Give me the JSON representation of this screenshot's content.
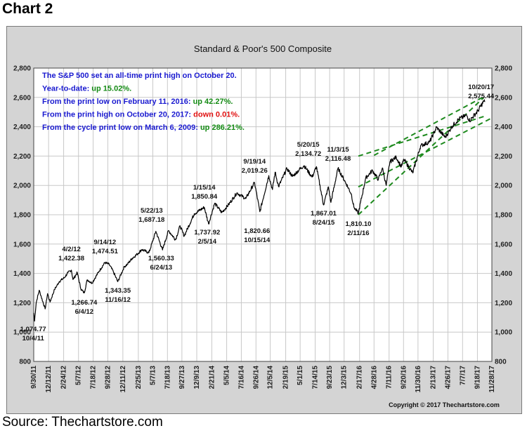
{
  "page": {
    "heading": "Chart 2",
    "source": "Source: Thechartstore.com"
  },
  "colors": {
    "blue": "#1a1ad0",
    "green": "#138a13",
    "red": "#e01010",
    "channel": "#1e8a1e",
    "price": "#000000"
  },
  "chart_data": {
    "type": "line",
    "title": "Standard & Poor's 500 Composite",
    "copyright": "Copyright © 2017 Thechartstore.com",
    "xlabel": "",
    "ylabel": "",
    "ylim": [
      800,
      2800
    ],
    "yticks": [
      800,
      1000,
      1200,
      1400,
      1600,
      1800,
      2000,
      2200,
      2400,
      2600,
      2800
    ],
    "ytick_labels": [
      "800",
      "1,000",
      "1,200",
      "1,400",
      "1,600",
      "1,800",
      "2,000",
      "2,200",
      "2,400",
      "2,600",
      "2,800"
    ],
    "xlim": [
      "2011-09-30",
      "2017-11-28"
    ],
    "xticks": [
      "2011-09-30",
      "2011-12-12",
      "2012-02-24",
      "2012-05-07",
      "2012-07-18",
      "2012-09-28",
      "2012-12-11",
      "2013-02-25",
      "2013-05-07",
      "2013-07-18",
      "2013-09-27",
      "2013-12-09",
      "2014-02-21",
      "2014-05-05",
      "2014-07-16",
      "2014-09-26",
      "2014-12-05",
      "2015-02-19",
      "2015-05-01",
      "2015-07-14",
      "2015-09-23",
      "2015-12-03",
      "2016-02-17",
      "2016-04-28",
      "2016-07-11",
      "2016-09-20",
      "2016-11-30",
      "2017-02-13",
      "2017-04-26",
      "2017-07-07",
      "2017-09-18",
      "2017-11-28"
    ],
    "xtick_labels": [
      "9/30/11",
      "12/12/11",
      "2/24/12",
      "5/7/12",
      "7/18/12",
      "9/28/12",
      "12/11/12",
      "2/25/13",
      "5/7/13",
      "7/18/13",
      "9/27/13",
      "12/9/13",
      "2/21/14",
      "5/5/14",
      "7/16/14",
      "9/26/14",
      "12/5/14",
      "2/19/15",
      "5/1/15",
      "7/14/15",
      "9/23/15",
      "12/3/15",
      "2/17/16",
      "4/28/16",
      "7/11/16",
      "9/20/16",
      "11/30/16",
      "2/13/17",
      "4/26/17",
      "7/7/17",
      "9/18/17",
      "11/28/17"
    ],
    "grid": true,
    "series": [
      {
        "points": [
          [
            "2011-09-30",
            1131
          ],
          [
            "2011-10-04",
            1074.77
          ],
          [
            "2011-10-12",
            1200
          ],
          [
            "2011-10-27",
            1285
          ],
          [
            "2011-11-04",
            1250
          ],
          [
            "2011-11-25",
            1158
          ],
          [
            "2011-12-07",
            1262
          ],
          [
            "2011-12-19",
            1205
          ],
          [
            "2012-01-10",
            1290
          ],
          [
            "2012-02-03",
            1345
          ],
          [
            "2012-02-28",
            1372
          ],
          [
            "2012-03-16",
            1405
          ],
          [
            "2012-04-02",
            1422.38
          ],
          [
            "2012-04-10",
            1358
          ],
          [
            "2012-05-01",
            1406
          ],
          [
            "2012-05-18",
            1296
          ],
          [
            "2012-06-04",
            1266.74
          ],
          [
            "2012-06-19",
            1357
          ],
          [
            "2012-07-12",
            1334
          ],
          [
            "2012-08-16",
            1415
          ],
          [
            "2012-09-14",
            1474.51
          ],
          [
            "2012-10-05",
            1461
          ],
          [
            "2012-10-25",
            1412
          ],
          [
            "2012-11-16",
            1343.35
          ],
          [
            "2012-12-18",
            1446
          ],
          [
            "2013-01-02",
            1462
          ],
          [
            "2013-01-25",
            1502
          ],
          [
            "2013-02-19",
            1531
          ],
          [
            "2013-03-14",
            1563
          ],
          [
            "2013-04-18",
            1541
          ],
          [
            "2013-05-22",
            1687.18
          ],
          [
            "2013-06-24",
            1560.33
          ],
          [
            "2013-07-23",
            1692
          ],
          [
            "2013-08-27",
            1630
          ],
          [
            "2013-09-18",
            1725
          ],
          [
            "2013-10-08",
            1655
          ],
          [
            "2013-11-27",
            1807
          ],
          [
            "2014-01-15",
            1850.84
          ],
          [
            "2014-02-05",
            1737.92
          ],
          [
            "2014-03-07",
            1878
          ],
          [
            "2014-04-11",
            1815
          ],
          [
            "2014-05-15",
            1870
          ],
          [
            "2014-06-24",
            1949
          ],
          [
            "2014-08-07",
            1910
          ],
          [
            "2014-09-19",
            2019.26
          ],
          [
            "2014-10-15",
            1820.66
          ],
          [
            "2014-11-28",
            2067
          ],
          [
            "2014-12-16",
            1972
          ],
          [
            "2014-12-29",
            2090
          ],
          [
            "2015-01-15",
            1992
          ],
          [
            "2015-02-25",
            2115
          ],
          [
            "2015-03-25",
            2061
          ],
          [
            "2015-04-27",
            2108
          ],
          [
            "2015-05-20",
            2134.72
          ],
          [
            "2015-06-29",
            2057
          ],
          [
            "2015-07-20",
            2128
          ],
          [
            "2015-08-24",
            1867.01
          ],
          [
            "2015-09-17",
            1990
          ],
          [
            "2015-09-29",
            1884
          ],
          [
            "2015-11-03",
            2116.48
          ],
          [
            "2015-12-14",
            2010
          ],
          [
            "2016-01-07",
            1943
          ],
          [
            "2016-01-20",
            1852
          ],
          [
            "2016-02-11",
            1810.1
          ],
          [
            "2016-03-18",
            2050
          ],
          [
            "2016-04-20",
            2102
          ],
          [
            "2016-05-19",
            2040
          ],
          [
            "2016-06-08",
            2119
          ],
          [
            "2016-06-27",
            2000
          ],
          [
            "2016-07-15",
            2161
          ],
          [
            "2016-08-15",
            2193
          ],
          [
            "2016-09-09",
            2127
          ],
          [
            "2016-09-22",
            2177
          ],
          [
            "2016-11-04",
            2085
          ],
          [
            "2016-12-13",
            2271
          ],
          [
            "2017-01-26",
            2296
          ],
          [
            "2017-03-01",
            2396
          ],
          [
            "2017-04-13",
            2328
          ],
          [
            "2017-05-16",
            2402
          ],
          [
            "2017-06-19",
            2453
          ],
          [
            "2017-07-27",
            2478
          ],
          [
            "2017-08-11",
            2441
          ],
          [
            "2017-09-20",
            2508
          ],
          [
            "2017-10-20",
            2575.44
          ],
          [
            "2017-10-24",
            2569
          ]
        ]
      }
    ],
    "channel": [
      [
        [
          "2016-02-11",
          1800
        ],
        [
          "2017-10-20",
          2600
        ]
      ],
      [
        [
          "2016-02-11",
          1990
        ],
        [
          "2017-11-28",
          2460
        ]
      ],
      [
        [
          "2016-02-11",
          2200
        ],
        [
          "2017-10-20",
          2470
        ]
      ],
      [
        [
          "2016-04-28",
          2205
        ],
        [
          "2017-10-20",
          2605
        ]
      ]
    ],
    "annotations": [
      {
        "date_label": "10/4/11",
        "value_label": "1,074.77",
        "date": "2011-10-04",
        "value": 1074.77
      },
      {
        "date_label": "4/2/12",
        "value_label": "1,422.38",
        "date": "2012-04-02",
        "value": 1422.38
      },
      {
        "date_label": "6/4/12",
        "value_label": "1,266.74",
        "date": "2012-06-04",
        "value": 1266.74
      },
      {
        "date_label": "9/14/12",
        "value_label": "1,474.51",
        "date": "2012-09-14",
        "value": 1474.51
      },
      {
        "date_label": "11/16/12",
        "value_label": "1,343.35",
        "date": "2012-11-16",
        "value": 1343.35
      },
      {
        "date_label": "5/22/13",
        "value_label": "1,687.18",
        "date": "2013-05-22",
        "value": 1687.18
      },
      {
        "date_label": "6/24/13",
        "value_label": "1,560.33",
        "date": "2013-06-24",
        "value": 1560.33
      },
      {
        "date_label": "1/15/14",
        "value_label": "1,850.84",
        "date": "2014-01-15",
        "value": 1850.84
      },
      {
        "date_label": "2/5/14",
        "value_label": "1,737.92",
        "date": "2014-02-05",
        "value": 1737.92
      },
      {
        "date_label": "9/19/14",
        "value_label": "2,019.26",
        "date": "2014-09-19",
        "value": 2019.26
      },
      {
        "date_label": "10/15/14",
        "value_label": "1,820.66",
        "date": "2014-10-15",
        "value": 1820.66
      },
      {
        "date_label": "5/20/15",
        "value_label": "2,134.72",
        "date": "2015-05-20",
        "value": 2134.72
      },
      {
        "date_label": "8/24/15",
        "value_label": "1,867.01",
        "date": "2015-08-24",
        "value": 1867.01
      },
      {
        "date_label": "11/3/15",
        "value_label": "2,116.48",
        "date": "2015-11-03",
        "value": 2116.48
      },
      {
        "date_label": "2/11/16",
        "value_label": "1,810.10",
        "date": "2016-02-11",
        "value": 1810.1
      },
      {
        "date_label": "10/20/17",
        "value_label": "2,575.44",
        "date": "2017-10-20",
        "value": 2575.44
      }
    ],
    "info_box": [
      [
        {
          "text": "The S&P 500 set an all-time print high on October 20.",
          "color": "blue"
        }
      ],
      [
        {
          "text": "Year-to-date: ",
          "color": "blue"
        },
        {
          "text": "up 15.02%.",
          "color": "green"
        }
      ],
      [
        {
          "text": "From the print low on February 11, 2016:  ",
          "color": "blue"
        },
        {
          "text": "up 42.27%.",
          "color": "green"
        }
      ],
      [
        {
          "text": "From the print high on October 20, 2017:  ",
          "color": "blue"
        },
        {
          "text": "down 0.01%.",
          "color": "red"
        }
      ],
      [
        {
          "text": "From the cycle print low on March 6, 2009:  ",
          "color": "blue"
        },
        {
          "text": "up 286.21%.",
          "color": "green"
        }
      ]
    ]
  }
}
